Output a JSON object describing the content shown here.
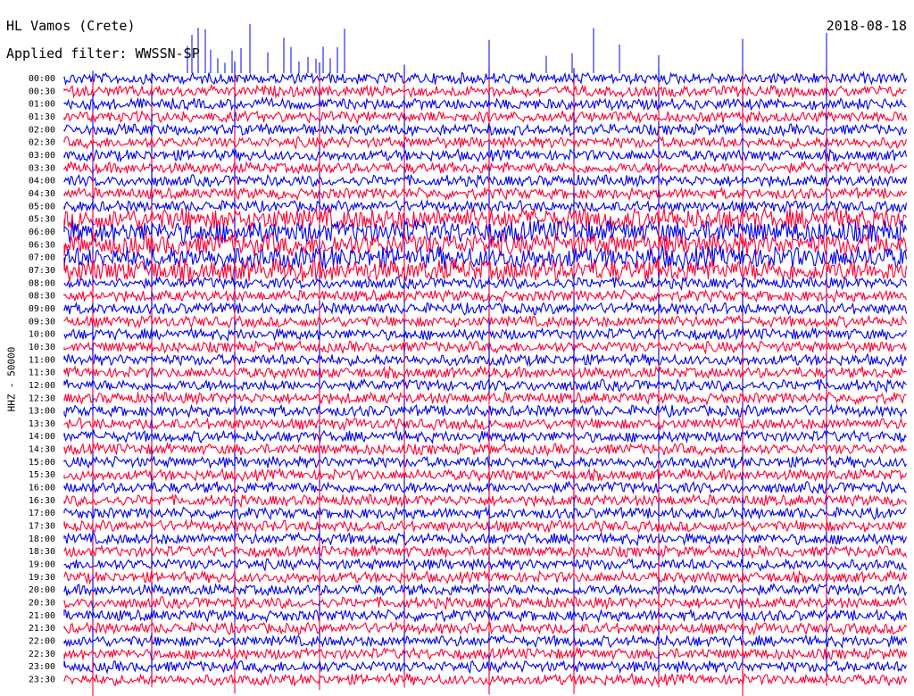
{
  "header": {
    "station": "HL Vamos (Crete)",
    "date": "2018-08-18",
    "filter": "Applied filter: WWSSN-SP"
  },
  "chart_data": {
    "type": "line",
    "ylabel": "HHZ - 50000",
    "row_labels": [
      "00:00",
      "00:30",
      "01:00",
      "01:30",
      "02:00",
      "02:30",
      "03:00",
      "03:30",
      "04:00",
      "04:30",
      "05:00",
      "05:30",
      "06:00",
      "06:30",
      "07:00",
      "07:30",
      "08:00",
      "08:30",
      "09:00",
      "09:30",
      "10:00",
      "10:30",
      "11:00",
      "11:30",
      "12:00",
      "12:30",
      "13:00",
      "13:30",
      "14:00",
      "14:30",
      "15:00",
      "15:30",
      "16:00",
      "16:30",
      "17:00",
      "17:30",
      "18:00",
      "18:30",
      "19:00",
      "19:30",
      "20:00",
      "20:30",
      "21:00",
      "21:30",
      "22:00",
      "22:30",
      "23:00",
      "23:30"
    ],
    "series_colors": [
      "#0000ee",
      "#ff0033"
    ],
    "trace_window_minutes": 30,
    "noisy_rows": [
      "05:30",
      "06:00",
      "06:30",
      "07:00",
      "07:30"
    ]
  }
}
